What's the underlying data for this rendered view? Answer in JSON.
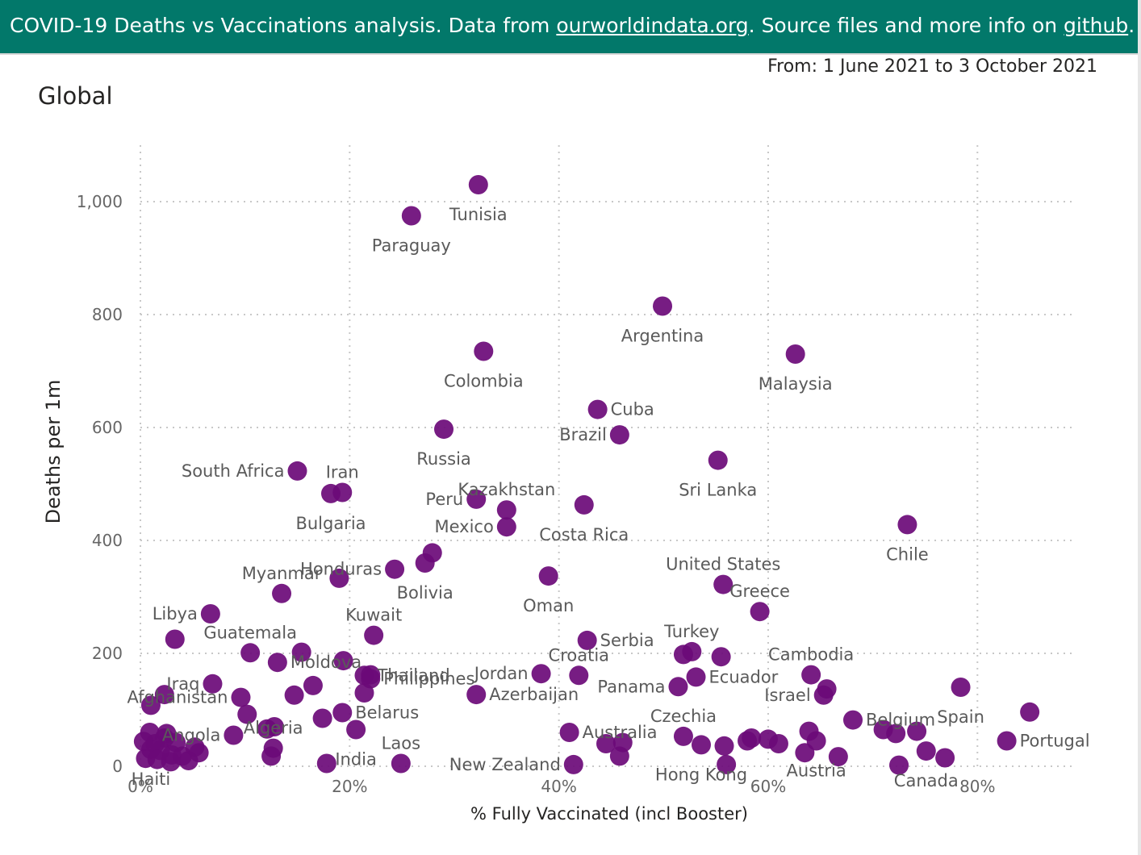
{
  "banner": {
    "text_1": "COVID-19 Deaths vs Vaccinations analysis. Data from ",
    "link_1": "ourworldindata.org",
    "text_2": ". Source files and more info on ",
    "link_2": "github",
    "text_3": "."
  },
  "date_range": "From: 1 June 2021 to 3 October 2021",
  "chart_data": {
    "type": "scatter",
    "title": "Global",
    "xlabel": "% Fully Vaccinated (incl Booster)",
    "ylabel": "Deaths per 1m",
    "xlim": [
      0,
      89
    ],
    "ylim": [
      0,
      1100
    ],
    "x_ticks": [
      0,
      20,
      40,
      60,
      80
    ],
    "x_tick_labels": [
      "0%",
      "20%",
      "40%",
      "60%",
      "80%"
    ],
    "y_ticks": [
      0,
      200,
      400,
      600,
      800,
      1000
    ],
    "y_tick_labels": [
      "0",
      "200",
      "400",
      "600",
      "800",
      "1,000"
    ],
    "grid": true,
    "colors": {
      "point": "#6b0a78",
      "grid": "#c8c8c8"
    },
    "points": [
      {
        "x": 32.3,
        "y": 1030,
        "label": "Tunisia",
        "label_pos": "below"
      },
      {
        "x": 25.9,
        "y": 975,
        "label": "Paraguay",
        "label_pos": "below"
      },
      {
        "x": 49.9,
        "y": 815,
        "label": "Argentina",
        "label_pos": "below"
      },
      {
        "x": 32.8,
        "y": 735,
        "label": "Colombia",
        "label_pos": "below"
      },
      {
        "x": 62.6,
        "y": 730,
        "label": "Malaysia",
        "label_pos": "below"
      },
      {
        "x": 43.7,
        "y": 632,
        "label": "Cuba",
        "label_pos": "right"
      },
      {
        "x": 45.8,
        "y": 587,
        "label": "Brazil",
        "label_pos": "left"
      },
      {
        "x": 29.0,
        "y": 597,
        "label": "Russia",
        "label_pos": "below"
      },
      {
        "x": 55.2,
        "y": 542,
        "label": "Sri Lanka",
        "label_pos": "below"
      },
      {
        "x": 15.0,
        "y": 523,
        "label": "South Africa",
        "label_pos": "left"
      },
      {
        "x": 19.3,
        "y": 485,
        "label": "Iran",
        "label_pos": "above"
      },
      {
        "x": 18.2,
        "y": 483,
        "label": "Bulgaria",
        "label_pos": "below"
      },
      {
        "x": 32.1,
        "y": 473,
        "label": "Peru",
        "label_pos": "left"
      },
      {
        "x": 35.0,
        "y": 454,
        "label": "Kazakhstan",
        "label_pos": "above"
      },
      {
        "x": 35.0,
        "y": 424,
        "label": "Mexico",
        "label_pos": "left"
      },
      {
        "x": 42.4,
        "y": 463,
        "label": "Costa Rica",
        "label_pos": "below"
      },
      {
        "x": 73.3,
        "y": 428,
        "label": "Chile",
        "label_pos": "below"
      },
      {
        "x": 27.9,
        "y": 378,
        "label": ""
      },
      {
        "x": 27.2,
        "y": 360,
        "label": "Bolivia",
        "label_pos": "below"
      },
      {
        "x": 24.3,
        "y": 349,
        "label": "Honduras",
        "label_pos": "left"
      },
      {
        "x": 19.0,
        "y": 333,
        "label": ""
      },
      {
        "x": 39.0,
        "y": 337,
        "label": "Oman",
        "label_pos": "below"
      },
      {
        "x": 55.7,
        "y": 322,
        "label": "United States",
        "label_pos": "above"
      },
      {
        "x": 13.5,
        "y": 306,
        "label": "Myanmar",
        "label_pos": "above"
      },
      {
        "x": 6.7,
        "y": 270,
        "label": "Libya",
        "label_pos": "left"
      },
      {
        "x": 59.2,
        "y": 274,
        "label": "Greece",
        "label_pos": "above"
      },
      {
        "x": 3.3,
        "y": 225,
        "label": ""
      },
      {
        "x": 22.3,
        "y": 232,
        "label": "Kuwait",
        "label_pos": "above"
      },
      {
        "x": 42.7,
        "y": 223,
        "label": "Serbia",
        "label_pos": "right"
      },
      {
        "x": 52.7,
        "y": 203,
        "label": "Turkey",
        "label_pos": "above"
      },
      {
        "x": 51.9,
        "y": 198,
        "label": ""
      },
      {
        "x": 55.5,
        "y": 194,
        "label": ""
      },
      {
        "x": 10.5,
        "y": 201,
        "label": "Guatemala",
        "label_pos": "above"
      },
      {
        "x": 15.4,
        "y": 202,
        "label": ""
      },
      {
        "x": 13.1,
        "y": 184,
        "label": "Moldova",
        "label_pos": "right"
      },
      {
        "x": 19.4,
        "y": 187,
        "label": ""
      },
      {
        "x": 21.4,
        "y": 161,
        "label": "Thailand",
        "label_pos": "right"
      },
      {
        "x": 22.0,
        "y": 162,
        "label": ""
      },
      {
        "x": 6.9,
        "y": 146,
        "label": "Iraq",
        "label_pos": "left"
      },
      {
        "x": 16.5,
        "y": 143,
        "label": ""
      },
      {
        "x": 14.7,
        "y": 126,
        "label": ""
      },
      {
        "x": 21.4,
        "y": 130,
        "label": ""
      },
      {
        "x": 38.3,
        "y": 164,
        "label": "Jordan",
        "label_pos": "left"
      },
      {
        "x": 41.9,
        "y": 161,
        "label": "Croatia",
        "label_pos": "above"
      },
      {
        "x": 51.4,
        "y": 141,
        "label": "Panama",
        "label_pos": "left"
      },
      {
        "x": 53.1,
        "y": 158,
        "label": "Ecuador",
        "label_pos": "right"
      },
      {
        "x": 64.1,
        "y": 162,
        "label": "Cambodia",
        "label_pos": "above"
      },
      {
        "x": 65.6,
        "y": 137,
        "label": ""
      },
      {
        "x": 65.3,
        "y": 126,
        "label": "Israel",
        "label_pos": "left"
      },
      {
        "x": 78.4,
        "y": 140,
        "label": "Spain",
        "label_pos": "below"
      },
      {
        "x": 32.1,
        "y": 127,
        "label": "Azerbaijan",
        "label_pos": "right"
      },
      {
        "x": 1.0,
        "y": 108,
        "label": ""
      },
      {
        "x": 2.3,
        "y": 127,
        "label": ""
      },
      {
        "x": 9.6,
        "y": 122,
        "label": "Afghanistan",
        "label_pos": "left"
      },
      {
        "x": 10.2,
        "y": 92,
        "label": ""
      },
      {
        "x": 17.4,
        "y": 85,
        "label": ""
      },
      {
        "x": 19.3,
        "y": 95,
        "label": "Belarus",
        "label_pos": "right"
      },
      {
        "x": 22.0,
        "y": 155,
        "label": "Philippines",
        "label_pos": "right"
      },
      {
        "x": 20.6,
        "y": 65,
        "label": "India",
        "label_pos": "below"
      },
      {
        "x": 24.9,
        "y": 5,
        "label": "Laos",
        "label_pos": "above"
      },
      {
        "x": 12.1,
        "y": 66,
        "label": ""
      },
      {
        "x": 12.8,
        "y": 70,
        "label": ""
      },
      {
        "x": 12.7,
        "y": 32,
        "label": "Algeria",
        "label_pos": "above"
      },
      {
        "x": 12.5,
        "y": 18,
        "label": ""
      },
      {
        "x": 8.9,
        "y": 55,
        "label": "Angola",
        "label_pos": "left"
      },
      {
        "x": 17.8,
        "y": 5,
        "label": ""
      },
      {
        "x": 41.0,
        "y": 60,
        "label": "Australia",
        "label_pos": "right"
      },
      {
        "x": 41.4,
        "y": 3,
        "label": "New Zealand",
        "label_pos": "left"
      },
      {
        "x": 44.5,
        "y": 40,
        "label": ""
      },
      {
        "x": 45.8,
        "y": 18,
        "label": ""
      },
      {
        "x": 46.1,
        "y": 42,
        "label": ""
      },
      {
        "x": 51.9,
        "y": 53,
        "label": "Czechia",
        "label_pos": "above"
      },
      {
        "x": 53.6,
        "y": 38,
        "label": "Hong Kong",
        "label_pos": "below"
      },
      {
        "x": 55.8,
        "y": 36,
        "label": ""
      },
      {
        "x": 56.0,
        "y": 3,
        "label": ""
      },
      {
        "x": 58.0,
        "y": 45,
        "label": ""
      },
      {
        "x": 58.4,
        "y": 50,
        "label": ""
      },
      {
        "x": 60.0,
        "y": 48,
        "label": ""
      },
      {
        "x": 61.0,
        "y": 40,
        "label": ""
      },
      {
        "x": 63.9,
        "y": 62,
        "label": ""
      },
      {
        "x": 64.6,
        "y": 45,
        "label": "Austria",
        "label_pos": "below"
      },
      {
        "x": 63.5,
        "y": 24,
        "label": ""
      },
      {
        "x": 66.7,
        "y": 17,
        "label": ""
      },
      {
        "x": 68.1,
        "y": 82,
        "label": "Belgium",
        "label_pos": "right"
      },
      {
        "x": 71.0,
        "y": 65,
        "label": ""
      },
      {
        "x": 72.2,
        "y": 58,
        "label": ""
      },
      {
        "x": 74.2,
        "y": 62,
        "label": ""
      },
      {
        "x": 72.5,
        "y": 2,
        "label": ""
      },
      {
        "x": 75.1,
        "y": 27,
        "label": "Canada",
        "label_pos": "below"
      },
      {
        "x": 76.9,
        "y": 15,
        "label": ""
      },
      {
        "x": 85.0,
        "y": 96,
        "label": ""
      },
      {
        "x": 82.8,
        "y": 45,
        "label": "Portugal",
        "label_pos": "right"
      },
      {
        "x": 0.9,
        "y": 60,
        "label": ""
      },
      {
        "x": 1.4,
        "y": 40,
        "label": ""
      },
      {
        "x": 2.3,
        "y": 50,
        "label": ""
      },
      {
        "x": 2.5,
        "y": 58,
        "label": ""
      },
      {
        "x": 3.4,
        "y": 42,
        "label": ""
      },
      {
        "x": 1.0,
        "y": 30,
        "label": "Haiti",
        "label_pos": "below"
      },
      {
        "x": 1.9,
        "y": 28,
        "label": ""
      },
      {
        "x": 3.0,
        "y": 20,
        "label": ""
      },
      {
        "x": 4.0,
        "y": 18,
        "label": ""
      },
      {
        "x": 4.6,
        "y": 10,
        "label": ""
      },
      {
        "x": 5.2,
        "y": 34,
        "label": ""
      },
      {
        "x": 5.6,
        "y": 24,
        "label": ""
      },
      {
        "x": 0.5,
        "y": 14,
        "label": ""
      },
      {
        "x": 1.6,
        "y": 12,
        "label": ""
      },
      {
        "x": 2.9,
        "y": 8,
        "label": ""
      },
      {
        "x": 0.3,
        "y": 44,
        "label": ""
      }
    ]
  }
}
